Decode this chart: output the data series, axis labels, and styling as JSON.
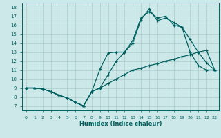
{
  "xlabel": "Humidex (Indice chaleur)",
  "bg_color": "#cce8e8",
  "grid_color": "#aacccc",
  "line_color": "#006060",
  "xlim": [
    -0.5,
    23.5
  ],
  "ylim": [
    6.5,
    18.5
  ],
  "xticks": [
    0,
    1,
    2,
    3,
    4,
    5,
    6,
    7,
    8,
    9,
    10,
    11,
    12,
    13,
    14,
    15,
    16,
    17,
    18,
    19,
    20,
    21,
    22,
    23
  ],
  "yticks": [
    7,
    8,
    9,
    10,
    11,
    12,
    13,
    14,
    15,
    16,
    17,
    18
  ],
  "line1_x": [
    0,
    1,
    2,
    3,
    4,
    5,
    6,
    7,
    8,
    9,
    10,
    11,
    12,
    13,
    14,
    15,
    16,
    17,
    18,
    19,
    20,
    21,
    22,
    23
  ],
  "line1_y": [
    9.0,
    9.0,
    8.9,
    8.6,
    8.2,
    7.9,
    7.4,
    7.0,
    8.6,
    9.0,
    9.5,
    10.0,
    10.5,
    11.0,
    11.2,
    11.5,
    11.7,
    12.0,
    12.2,
    12.5,
    12.7,
    13.0,
    13.2,
    11.0
  ],
  "line2_x": [
    0,
    1,
    2,
    3,
    4,
    5,
    6,
    7,
    8,
    9,
    10,
    11,
    12,
    13,
    14,
    15,
    16,
    17,
    18,
    19,
    20,
    21,
    22,
    23
  ],
  "line2_y": [
    9.0,
    9.0,
    8.9,
    8.6,
    8.2,
    7.9,
    7.4,
    7.0,
    8.6,
    11.1,
    12.9,
    13.0,
    13.0,
    14.3,
    16.8,
    17.5,
    16.8,
    17.0,
    16.0,
    15.8,
    14.4,
    13.0,
    11.8,
    11.0
  ],
  "line3_x": [
    0,
    1,
    2,
    3,
    4,
    5,
    6,
    7,
    8,
    9,
    10,
    11,
    12,
    13,
    14,
    15,
    16,
    17,
    18,
    19,
    20,
    21,
    22,
    23
  ],
  "line3_y": [
    9.0,
    9.0,
    8.9,
    8.6,
    8.2,
    7.9,
    7.4,
    7.0,
    8.6,
    9.0,
    10.5,
    12.0,
    13.0,
    14.0,
    16.6,
    17.8,
    16.5,
    16.8,
    16.3,
    15.8,
    13.0,
    11.5,
    11.0,
    11.0
  ]
}
